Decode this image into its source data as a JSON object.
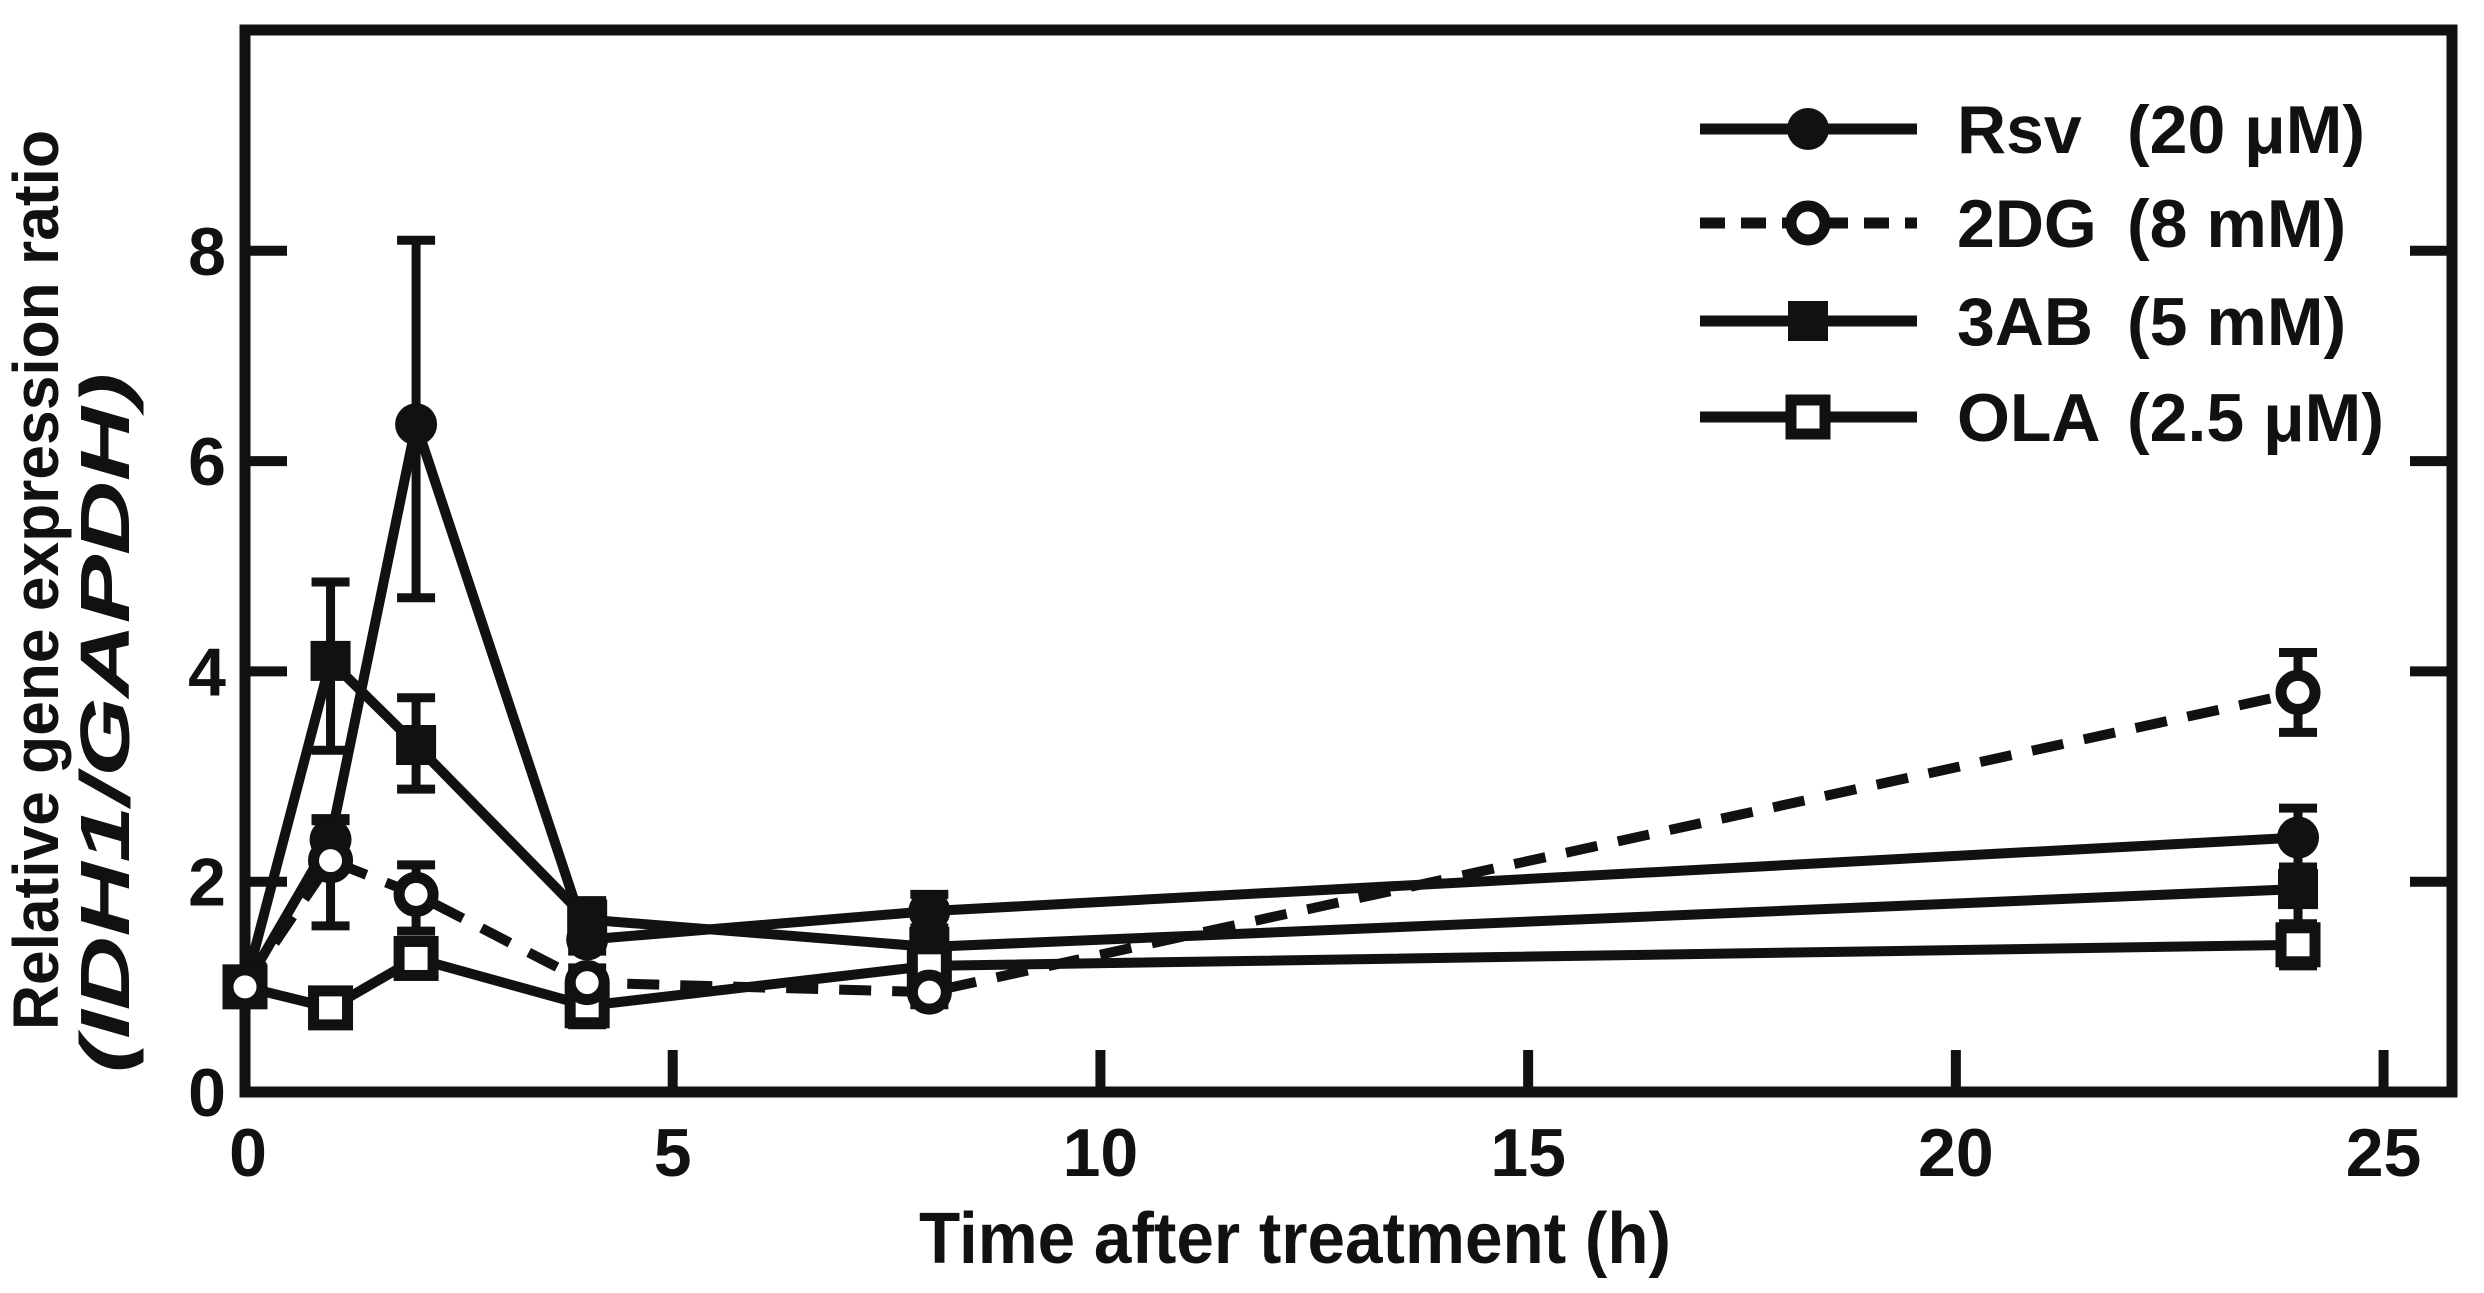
{
  "figure": {
    "background": "#ffffff",
    "ink": "#111111",
    "axes": {
      "x_title": "Time after treatment (h)",
      "y_title_line1": "Relative gene expression ratio",
      "y_title_line2": "(IDH1/GAPDH)",
      "x_tick_labels": [
        "0",
        "5",
        "10",
        "15",
        "20",
        "25"
      ],
      "x_tick_values": [
        0,
        5,
        10,
        15,
        20,
        25
      ],
      "y_tick_labels": [
        "0",
        "2",
        "4",
        "6",
        "8"
      ],
      "y_tick_values": [
        0,
        2,
        4,
        6,
        8
      ]
    }
  },
  "chart_data": {
    "type": "line",
    "title": "",
    "xlabel": "Time after treatment (h)",
    "ylabel": "Relative gene expression ratio (IDH1/GAPDH)",
    "x": [
      0,
      1,
      2,
      4,
      8,
      24
    ],
    "xlim": [
      0,
      25.8
    ],
    "ylim": [
      0,
      10.1
    ],
    "x_ticks": [
      5,
      10,
      15,
      20,
      25
    ],
    "y_ticks": [
      2,
      4,
      6,
      8
    ],
    "grid": false,
    "legend_position": "upper-right",
    "series": [
      {
        "name": "Rsv",
        "dose": "(20 μM)",
        "marker": "filled-circle",
        "line_style": "solid",
        "values": [
          1.0,
          2.4,
          6.35,
          1.45,
          1.72,
          2.42
        ],
        "err_up": [
          0,
          0.2,
          1.75,
          0,
          0.16,
          0.28
        ],
        "err_down": [
          0,
          0.2,
          1.65,
          0,
          0.16,
          0.28
        ]
      },
      {
        "name": "2DG",
        "dose": "(8 mM)",
        "marker": "open-circle",
        "line_style": "dashed",
        "values": [
          1.0,
          2.2,
          1.88,
          1.04,
          0.95,
          3.8
        ],
        "err_up": [
          0,
          0.38,
          0.28,
          0.14,
          0.1,
          0.38
        ],
        "err_down": [
          0,
          0.62,
          0.35,
          0.14,
          0.12,
          0.38
        ]
      },
      {
        "name": "3AB",
        "dose": "(5 mM)",
        "marker": "filled-square",
        "line_style": "solid",
        "values": [
          1.0,
          4.1,
          3.3,
          1.64,
          1.38,
          1.93
        ],
        "err_up": [
          0,
          0.75,
          0.45,
          0.18,
          0.12,
          0.12
        ],
        "err_down": [
          0,
          0.85,
          0.42,
          0.3,
          0.12,
          0.35
        ]
      },
      {
        "name": "OLA",
        "dose": "(2.5 μM)",
        "marker": "open-square",
        "line_style": "solid",
        "values": [
          1.0,
          0.8,
          1.27,
          0.82,
          1.2,
          1.4
        ],
        "err_up": [
          0,
          0.14,
          0.1,
          0.18,
          0.1,
          0.2
        ],
        "err_down": [
          0,
          0.14,
          0.1,
          0.18,
          0.1,
          0.2
        ]
      }
    ]
  }
}
